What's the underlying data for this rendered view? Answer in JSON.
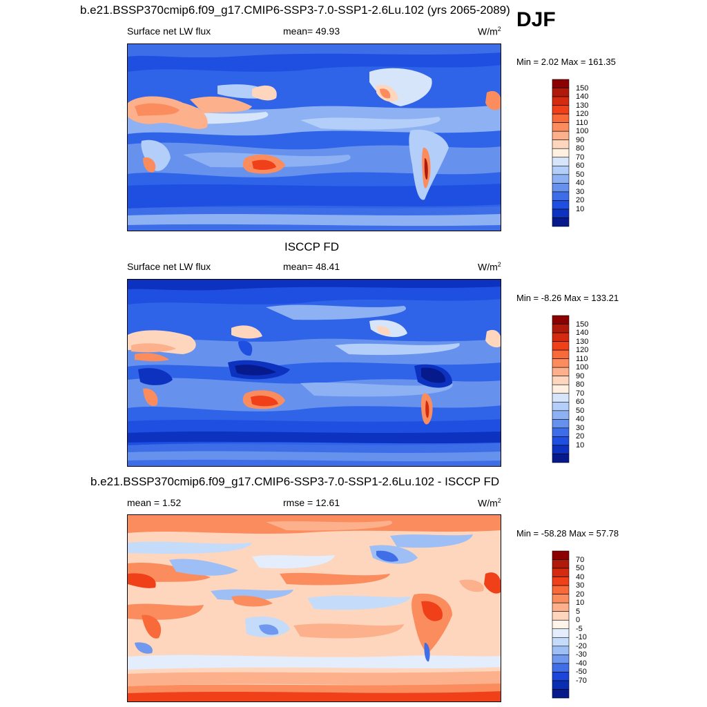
{
  "season": "DJF",
  "units_main": "W/m",
  "units_sup": "2",
  "panels": [
    {
      "title": "b.e21.BSSP370cmip6.f09_g17.CMIP6-SSP3-7.0-SSP1-2.6Lu.102 (yrs 2065-2089)",
      "left_label": "Surface net LW flux",
      "center_label": "mean=  49.93",
      "minmax": "Min =   2.02 Max = 161.35"
    },
    {
      "title": "ISCCP FD",
      "left_label": "Surface net LW flux",
      "center_label": "mean=  48.41",
      "minmax": "Min =  -8.26 Max = 133.21"
    },
    {
      "title": "b.e21.BSSP370cmip6.f09_g17.CMIP6-SSP3-7.0-SSP1-2.6Lu.102 - ISCCP FD",
      "left_label": "mean =   1.52",
      "center_label": "rmse =  12.61",
      "minmax": "Min = -58.28 Max =  57.78"
    }
  ],
  "colorbar_abs": {
    "labels": [
      "150",
      "140",
      "130",
      "120",
      "110",
      "100",
      "90",
      "80",
      "70",
      "60",
      "50",
      "40",
      "30",
      "20",
      "10"
    ],
    "colors": [
      "#8b0000",
      "#b01a0a",
      "#d42a0f",
      "#f0401a",
      "#f96a3a",
      "#fb8c5e",
      "#fdb08c",
      "#fed6bd",
      "#fff0e2",
      "#d7e5fb",
      "#b3cef8",
      "#8db1f3",
      "#6691ed",
      "#3d6ee8",
      "#1f4fe0",
      "#0d32c0",
      "#061a8c"
    ]
  },
  "colorbar_diff": {
    "labels": [
      "70",
      "50",
      "40",
      "30",
      "20",
      "10",
      "5",
      "0",
      "-5",
      "-10",
      "-20",
      "-30",
      "-40",
      "-50",
      "-70"
    ],
    "colors": [
      "#8b0000",
      "#b01a0a",
      "#d42a0f",
      "#f0401a",
      "#f96a3a",
      "#fb8c5e",
      "#fdb08c",
      "#fed6bd",
      "#fff3ea",
      "#e3edfc",
      "#c5dbfa",
      "#9dbff5",
      "#6f98ee",
      "#3f6ee6",
      "#1c45d9",
      "#0a2eb0",
      "#061a8c"
    ]
  }
}
